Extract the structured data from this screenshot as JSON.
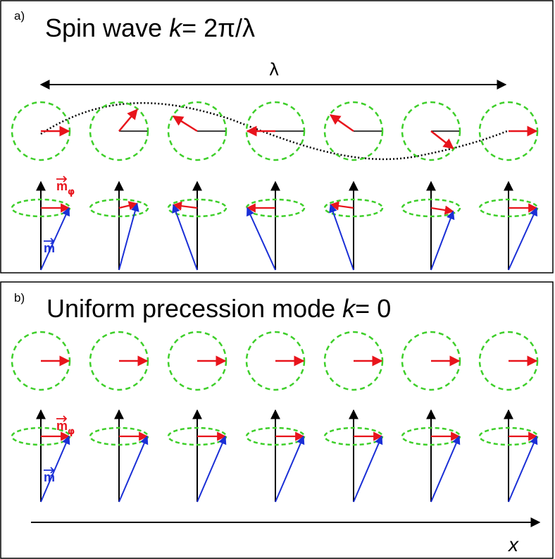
{
  "panel_a": {
    "letter": "a)",
    "title_prefix": "Spin wave ",
    "title_k": "k",
    "title_suffix": "= 2π/λ",
    "wavelength_label": "λ",
    "label_m_phi": "m",
    "label_phi_sub": "φ",
    "label_m": "m",
    "precession_angles_deg": [
      0,
      -50,
      -148,
      180,
      215,
      38,
      0
    ]
  },
  "panel_b": {
    "letter": "b)",
    "title_prefix": "Uniform precession mode ",
    "title_k": "k",
    "title_suffix": "= 0",
    "label_m_phi": "m",
    "label_phi_sub": "φ",
    "label_m": "m",
    "precession_angles_deg": [
      0,
      0,
      0,
      0,
      0,
      0,
      0
    ]
  },
  "axis": {
    "x_label": "x"
  },
  "colors": {
    "circle": "#3ecf2a",
    "m_phi": "#e8141c",
    "m": "#1a2fd6",
    "axis": "#000000",
    "wave": "#000000"
  }
}
